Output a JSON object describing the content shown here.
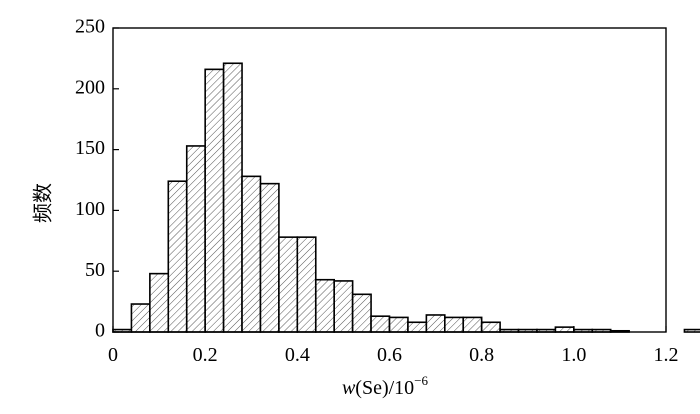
{
  "chart_data": {
    "type": "bar",
    "bin_width": 0.04,
    "bin_start": 0,
    "values": [
      2,
      23,
      48,
      124,
      153,
      216,
      221,
      128,
      122,
      78,
      78,
      43,
      42,
      31,
      13,
      12,
      8,
      14,
      12,
      12,
      8,
      2,
      2,
      2,
      4,
      2,
      2,
      1,
      0,
      0,
      0,
      2
    ],
    "xlim": [
      0,
      1.2
    ],
    "ylim": [
      0,
      250
    ],
    "x_ticks": [
      "0",
      "0.2",
      "0.4",
      "0.6",
      "0.8",
      "1.0",
      "1.2"
    ],
    "y_ticks": [
      "0",
      "50",
      "100",
      "150",
      "200",
      "250"
    ],
    "ylabel": "频数",
    "xlabel": {
      "italic": "w",
      "text": "(Se)/10",
      "sup": "−6"
    },
    "grid": false,
    "legend": false,
    "bar_fill": "hatched"
  }
}
